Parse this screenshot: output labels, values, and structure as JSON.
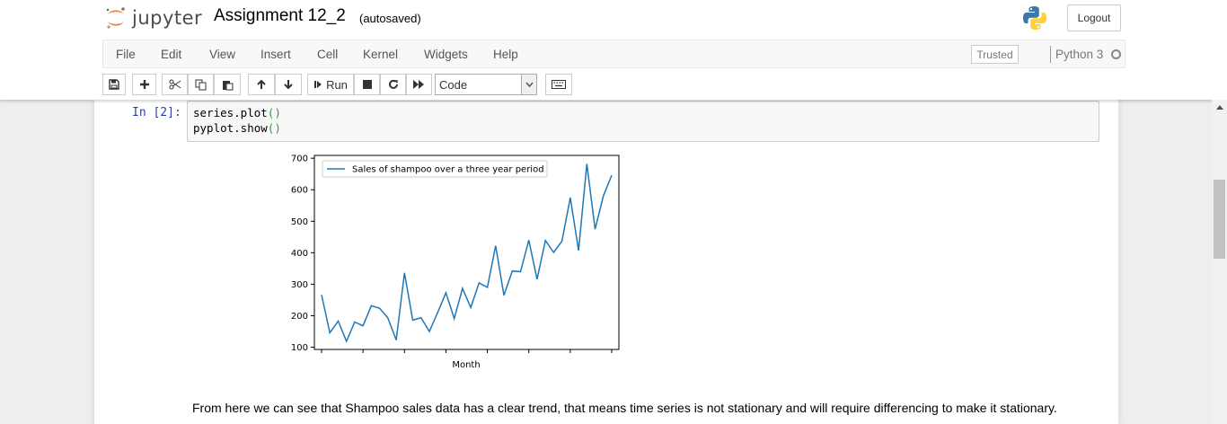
{
  "header": {
    "logo_text": "jupyter",
    "notebook_name": "Assignment 12_2",
    "autosave_status": "(autosaved)",
    "logout_label": "Logout"
  },
  "menubar": {
    "items": [
      "File",
      "Edit",
      "View",
      "Insert",
      "Cell",
      "Kernel",
      "Widgets",
      "Help"
    ],
    "trusted_label": "Trusted",
    "kernel_name": "Python 3"
  },
  "toolbar": {
    "run_label": "Run",
    "cell_type": "Code"
  },
  "cell": {
    "prompt": "In [2]:",
    "code_lines": [
      {
        "text": "series.plot",
        "paren": "()"
      },
      {
        "text": "pyplot.show",
        "paren": "()"
      }
    ]
  },
  "chart_data": {
    "type": "line",
    "title": "",
    "xlabel": "Month",
    "ylabel": "",
    "ylim": [
      93,
      709
    ],
    "yticks": [
      100,
      200,
      300,
      400,
      500,
      600,
      700
    ],
    "grid": false,
    "legend_position": "upper-left",
    "series": [
      {
        "name": "Sales of shampoo over a three year period",
        "color": "#1f77b4",
        "values": [
          266,
          146,
          183,
          119,
          180,
          168,
          232,
          224,
          193,
          123,
          336,
          186,
          194,
          150,
          210,
          273,
          191,
          287,
          226,
          304,
          290,
          422,
          265,
          342,
          340,
          440,
          316,
          439,
          401,
          437,
          575,
          407,
          682,
          475,
          581,
          646
        ]
      }
    ]
  },
  "markdown": {
    "text": "From here we can see that Shampoo sales data has a clear trend, that means time series is not stationary and will require differencing to make it stationary."
  }
}
